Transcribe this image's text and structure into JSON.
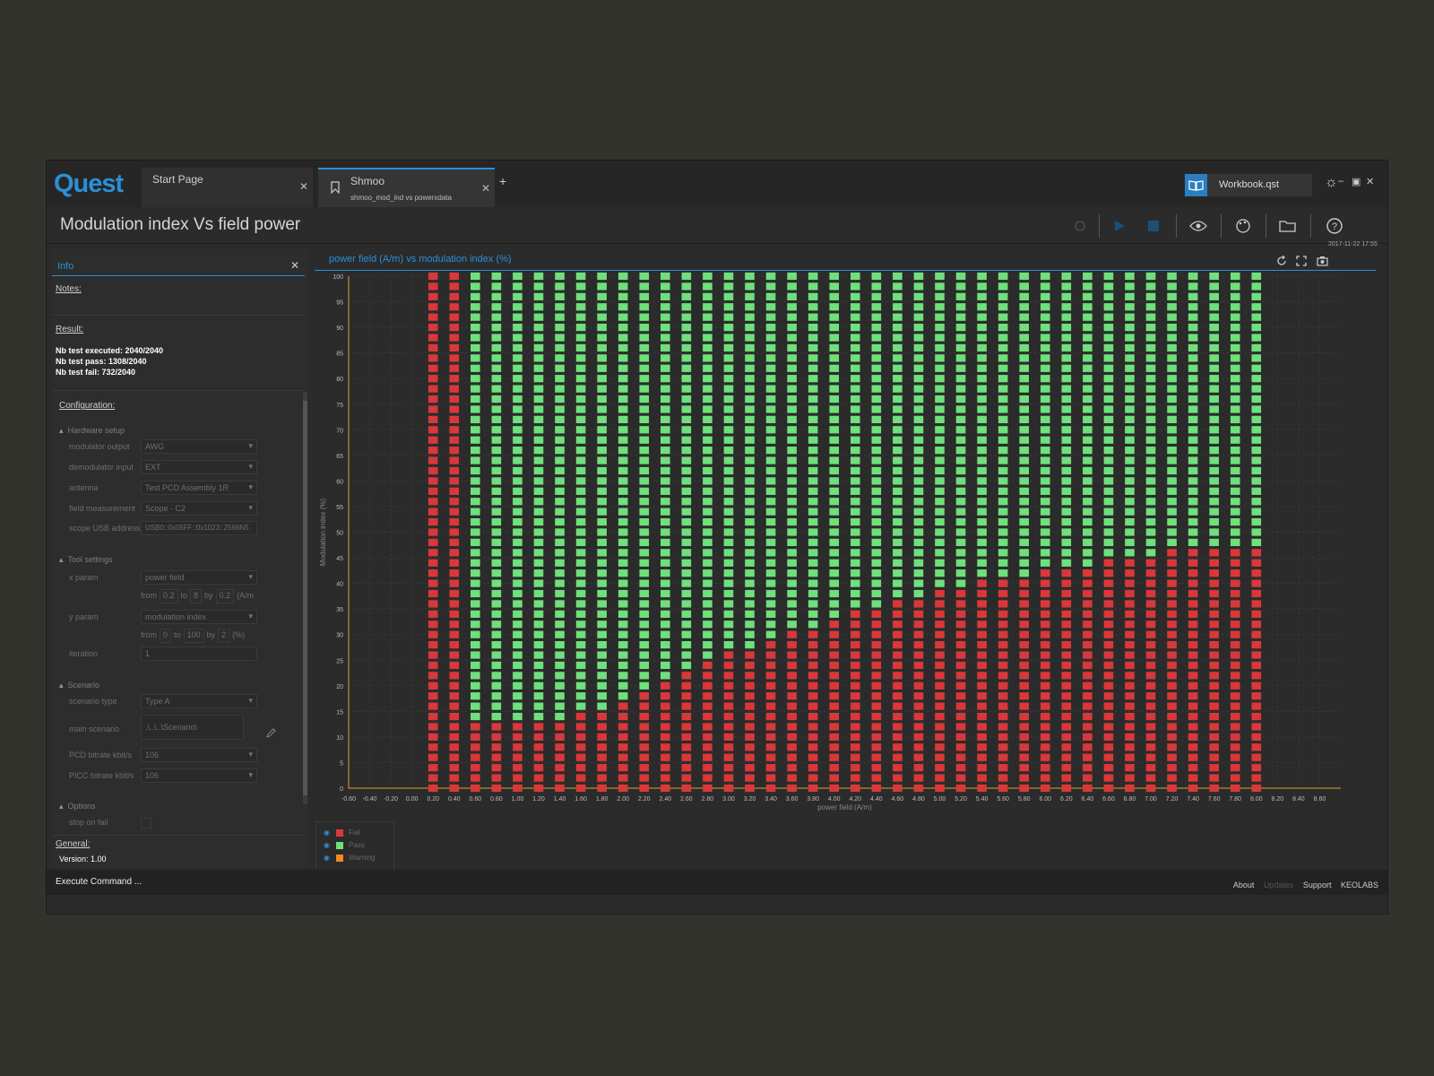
{
  "app": {
    "logo": "Quest",
    "tabs": [
      {
        "label": "Start Page",
        "sub": ""
      },
      {
        "label": "Shmoo",
        "sub": "shmoo_mod_ind vs powerxdata"
      }
    ],
    "workbook": "Workbook.qst",
    "timestamp": "2017-11-22 17:55"
  },
  "page": {
    "title": "Modulation index Vs field power"
  },
  "info": {
    "panel_title": "Info",
    "notes_label": "Notes:",
    "result_label": "Result:",
    "results": [
      "Nb test executed: 2040/2040",
      "Nb test pass: 1308/2040",
      "Nb test fail: 732/2040"
    ],
    "config_label": "Configuration:",
    "hardware_label": "Hardware setup",
    "hardware": [
      {
        "label": "modulator output",
        "value": "AWG"
      },
      {
        "label": "demodulator input",
        "value": "EXT"
      },
      {
        "label": "antenna",
        "value": "Test PCD Assembly 1R"
      },
      {
        "label": "field measurement",
        "value": "Scope - C2"
      },
      {
        "label": "scope USB address",
        "value": "USB0::0x05FF::0x1023::2566N5"
      }
    ],
    "tool_label": "Tool settings",
    "x_param": {
      "label": "x param",
      "value": "power field",
      "from": "0.2",
      "to": "8",
      "by": "0.2",
      "unit": "(A/m"
    },
    "y_param": {
      "label": "y param",
      "value": "modulation index",
      "from": "0",
      "to": "100",
      "by": "2",
      "unit": "(%)"
    },
    "iteration": {
      "label": "iteration",
      "value": "1"
    },
    "scenario_label": "Scenario",
    "scenario": [
      {
        "label": "scenario type",
        "value": "Type A"
      },
      {
        "label": "main scenario",
        "value": ".\\..\\..\\Scenario\\"
      },
      {
        "label": "PCD bitrate kbit/s",
        "value": "106"
      },
      {
        "label": "PICC bitrate kbit/s",
        "value": "106"
      }
    ],
    "options_label": "Options",
    "stop_on_fail": "stop on fail",
    "general_label": "General:",
    "version": "Version: 1.00",
    "range_words": {
      "from": "from",
      "to": "to",
      "by": "by"
    }
  },
  "chart_data": {
    "type": "heatmap",
    "title": "power field (A/m) vs modulation index (%)",
    "xlabel": "power field (A/m)",
    "ylabel": "Modulation index (%)",
    "xlim": [
      -0.6,
      8.8
    ],
    "ylim": [
      0,
      100
    ],
    "x_ticks": [
      -0.6,
      -0.4,
      -0.2,
      0,
      0.2,
      0.4,
      0.6,
      0.8,
      1,
      1.2,
      1.4,
      1.6,
      1.8,
      2,
      2.2,
      2.4,
      2.6,
      2.8,
      3,
      3.2,
      3.4,
      3.6,
      3.8,
      4,
      4.2,
      4.4,
      4.6,
      4.8,
      5,
      5.2,
      5.4,
      5.6,
      5.8,
      6,
      6.2,
      6.4,
      6.6,
      6.8,
      7,
      7.2,
      7.4,
      7.6,
      7.8,
      8,
      8.2,
      8.4,
      8.6
    ],
    "y_ticks": [
      0,
      5,
      10,
      15,
      20,
      25,
      30,
      35,
      40,
      45,
      50,
      55,
      60,
      65,
      70,
      75,
      80,
      85,
      90,
      95,
      100
    ],
    "y_step": 2,
    "x": [
      0.2,
      0.4,
      0.6,
      0.8,
      1.0,
      1.2,
      1.4,
      1.6,
      1.8,
      2.0,
      2.2,
      2.4,
      2.6,
      2.8,
      3.0,
      3.2,
      3.4,
      3.6,
      3.8,
      4.0,
      4.2,
      4.4,
      4.6,
      4.8,
      5.0,
      5.2,
      5.4,
      5.6,
      5.8,
      6.0,
      6.2,
      6.4,
      6.6,
      6.8,
      7.0,
      7.2,
      7.4,
      7.6,
      7.8,
      8.0
    ],
    "fail_up_to": [
      100,
      100,
      13,
      13,
      13,
      13,
      13,
      15,
      15,
      17,
      19,
      21,
      23,
      25,
      27,
      27,
      29,
      31,
      31,
      33,
      35,
      35,
      37,
      37,
      39,
      39,
      41,
      41,
      41,
      43,
      43,
      43,
      45,
      45,
      45,
      47,
      47,
      47,
      47,
      47
    ],
    "series": [
      {
        "name": "Fail",
        "color": "#d9383a"
      },
      {
        "name": "Pass",
        "color": "#6fe07c"
      },
      {
        "name": "Warning",
        "color": "#f08a24"
      }
    ],
    "grid": true,
    "legend_position": "bottom-left"
  },
  "status": {
    "execute": "Execute Command ...",
    "about": "About",
    "updates": "Updates",
    "support": "Support",
    "company": "KEOLABS"
  }
}
